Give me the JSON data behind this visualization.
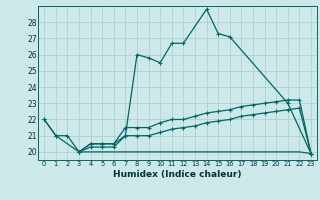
{
  "xlabel": "Humidex (Indice chaleur)",
  "bg_color": "#cde8e8",
  "grid_color": "#aacccc",
  "line_color": "#006666",
  "xlim": [
    -0.5,
    23.5
  ],
  "ylim": [
    19.5,
    29.0
  ],
  "yticks": [
    20,
    21,
    22,
    23,
    24,
    25,
    26,
    27,
    28
  ],
  "xtick_labels": [
    "0",
    "1",
    "2",
    "3",
    "4",
    "5",
    "6",
    "7",
    "8",
    "9",
    "10",
    "11",
    "12",
    "13",
    "14",
    "15",
    "16",
    "17",
    "18",
    "19",
    "20",
    "21",
    "22",
    "23"
  ],
  "series1_x": [
    0,
    1,
    3,
    4,
    5,
    6,
    7,
    8,
    9,
    10,
    11,
    12,
    14,
    15,
    16,
    21,
    23
  ],
  "series1_y": [
    22.0,
    21.0,
    20.0,
    20.5,
    20.5,
    20.5,
    21.0,
    26.0,
    25.8,
    25.5,
    26.7,
    26.7,
    28.8,
    27.3,
    27.1,
    23.0,
    19.9
  ],
  "series2_x": [
    0,
    1,
    2,
    3,
    4,
    5,
    6,
    7,
    8,
    9,
    10,
    11,
    12,
    13,
    14,
    15,
    16,
    17,
    18,
    19,
    20,
    21,
    22,
    23
  ],
  "series2_y": [
    22.0,
    21.0,
    21.0,
    20.0,
    20.5,
    20.5,
    20.5,
    21.5,
    21.5,
    21.5,
    21.8,
    22.0,
    22.0,
    22.2,
    22.4,
    22.5,
    22.6,
    22.8,
    22.9,
    23.0,
    23.1,
    23.2,
    23.2,
    19.9
  ],
  "series3_x": [
    3,
    4,
    5,
    6,
    7,
    8,
    9,
    10,
    11,
    12,
    13,
    14,
    15,
    16,
    17,
    18,
    19,
    20,
    21,
    22,
    23
  ],
  "series3_y": [
    20.0,
    20.3,
    20.3,
    20.3,
    21.0,
    21.0,
    21.0,
    21.2,
    21.4,
    21.5,
    21.6,
    21.8,
    21.9,
    22.0,
    22.2,
    22.3,
    22.4,
    22.5,
    22.6,
    22.7,
    19.9
  ],
  "series4_x": [
    3,
    4,
    5,
    6,
    7,
    8,
    9,
    10,
    11,
    12,
    13,
    14,
    15,
    16,
    17,
    18,
    19,
    20,
    21,
    22,
    23
  ],
  "series4_y": [
    20.0,
    20.0,
    20.0,
    20.0,
    20.0,
    20.0,
    20.0,
    20.0,
    20.0,
    20.0,
    20.0,
    20.0,
    20.0,
    20.0,
    20.0,
    20.0,
    20.0,
    20.0,
    20.0,
    20.0,
    19.9
  ]
}
